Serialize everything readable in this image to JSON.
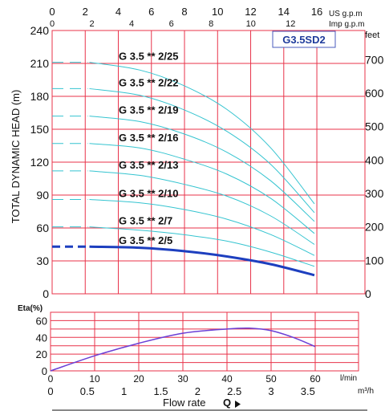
{
  "chart_data": [
    {
      "type": "line",
      "model": "G3.5SD2",
      "ylabel": "TOTAL DYNAMIC HEAD (m)",
      "ylim": [
        0,
        240
      ],
      "xlim": [
        0,
        60
      ],
      "grid": true,
      "y_ticks_m": [
        0,
        30,
        60,
        90,
        120,
        150,
        180,
        210,
        240
      ],
      "y_ticks_feet": [
        0,
        100,
        200,
        300,
        400,
        500,
        600,
        700
      ],
      "feet_unit": "feet",
      "us_gpm": {
        "label": "US g.p.m",
        "ticks": [
          0,
          2,
          4,
          6,
          8,
          10,
          12,
          14,
          16
        ]
      },
      "imp_gpm": {
        "label": "Imp g.p.m",
        "ticks": [
          0,
          2,
          4,
          6,
          8,
          10,
          12
        ]
      },
      "series": [
        {
          "name": "G  3.5  ** 2/25",
          "highlight": false,
          "x": [
            0,
            10,
            20,
            30,
            40,
            50,
            60
          ],
          "y": [
            211,
            211,
            204,
            190,
            168,
            133,
            82
          ]
        },
        {
          "name": "G  3.5  ** 2/22",
          "highlight": false,
          "x": [
            0,
            10,
            20,
            30,
            40,
            50,
            60
          ],
          "y": [
            187,
            187,
            181,
            168,
            148,
            118,
            74
          ]
        },
        {
          "name": "G  3.5  ** 2/19",
          "highlight": false,
          "x": [
            0,
            10,
            20,
            30,
            40,
            50,
            60
          ],
          "y": [
            162,
            162,
            157,
            146,
            129,
            103,
            66
          ]
        },
        {
          "name": "G  3.5  ** 2/16",
          "highlight": false,
          "x": [
            0,
            10,
            20,
            30,
            40,
            50,
            60
          ],
          "y": [
            137,
            137,
            133,
            123,
            109,
            87,
            55
          ]
        },
        {
          "name": "G  3.5  ** 2/13",
          "highlight": false,
          "x": [
            0,
            10,
            20,
            30,
            40,
            50,
            60
          ],
          "y": [
            112,
            112,
            108,
            100,
            89,
            71,
            45
          ]
        },
        {
          "name": "G  3.5  ** 2/10",
          "highlight": false,
          "x": [
            0,
            10,
            20,
            30,
            40,
            50,
            60
          ],
          "y": [
            86,
            86,
            83,
            77,
            68,
            54,
            35
          ]
        },
        {
          "name": "G  3.5  ** 2/7",
          "highlight": false,
          "x": [
            0,
            10,
            20,
            30,
            40,
            50,
            60
          ],
          "y": [
            61,
            61,
            58,
            54,
            48,
            38,
            25
          ]
        },
        {
          "name": "G  3.5  ** 2/5",
          "highlight": true,
          "x": [
            0,
            10,
            20,
            30,
            40,
            50,
            60
          ],
          "y": [
            43,
            43,
            42,
            39,
            34,
            27,
            17
          ]
        }
      ]
    },
    {
      "type": "line",
      "ylabel": "Eta(%)",
      "ylim": [
        0,
        70
      ],
      "xlim": [
        0,
        60
      ],
      "grid": true,
      "y_ticks": [
        0,
        20,
        40,
        60
      ],
      "y_tick_labels": [
        "0",
        "20",
        "40",
        "60"
      ],
      "x_lpm": {
        "label": "l/min",
        "ticks": [
          0,
          10,
          20,
          30,
          40,
          50,
          60
        ]
      },
      "x_m3h": {
        "label": "m³/h",
        "ticks": [
          0,
          0.5,
          1,
          1.5,
          2,
          2.5,
          3,
          3.5
        ]
      },
      "xlabel": "Flow rate",
      "xlabel_symbol": "Q",
      "series": [
        {
          "x": [
            0,
            10,
            20,
            30,
            40,
            45,
            50,
            55,
            60
          ],
          "y": [
            0,
            18,
            33,
            45,
            50,
            51,
            48,
            40,
            29
          ]
        }
      ]
    }
  ],
  "colors": {
    "grid": "#e8334a",
    "frame": "#e8334a",
    "curve": "#35c4d0",
    "highlight": "#1d3fbf",
    "eta_curve": "#6a3fd6",
    "label": "#111111",
    "badge_text": "#1f3c9c",
    "badge_border": "#4a5bbd"
  }
}
